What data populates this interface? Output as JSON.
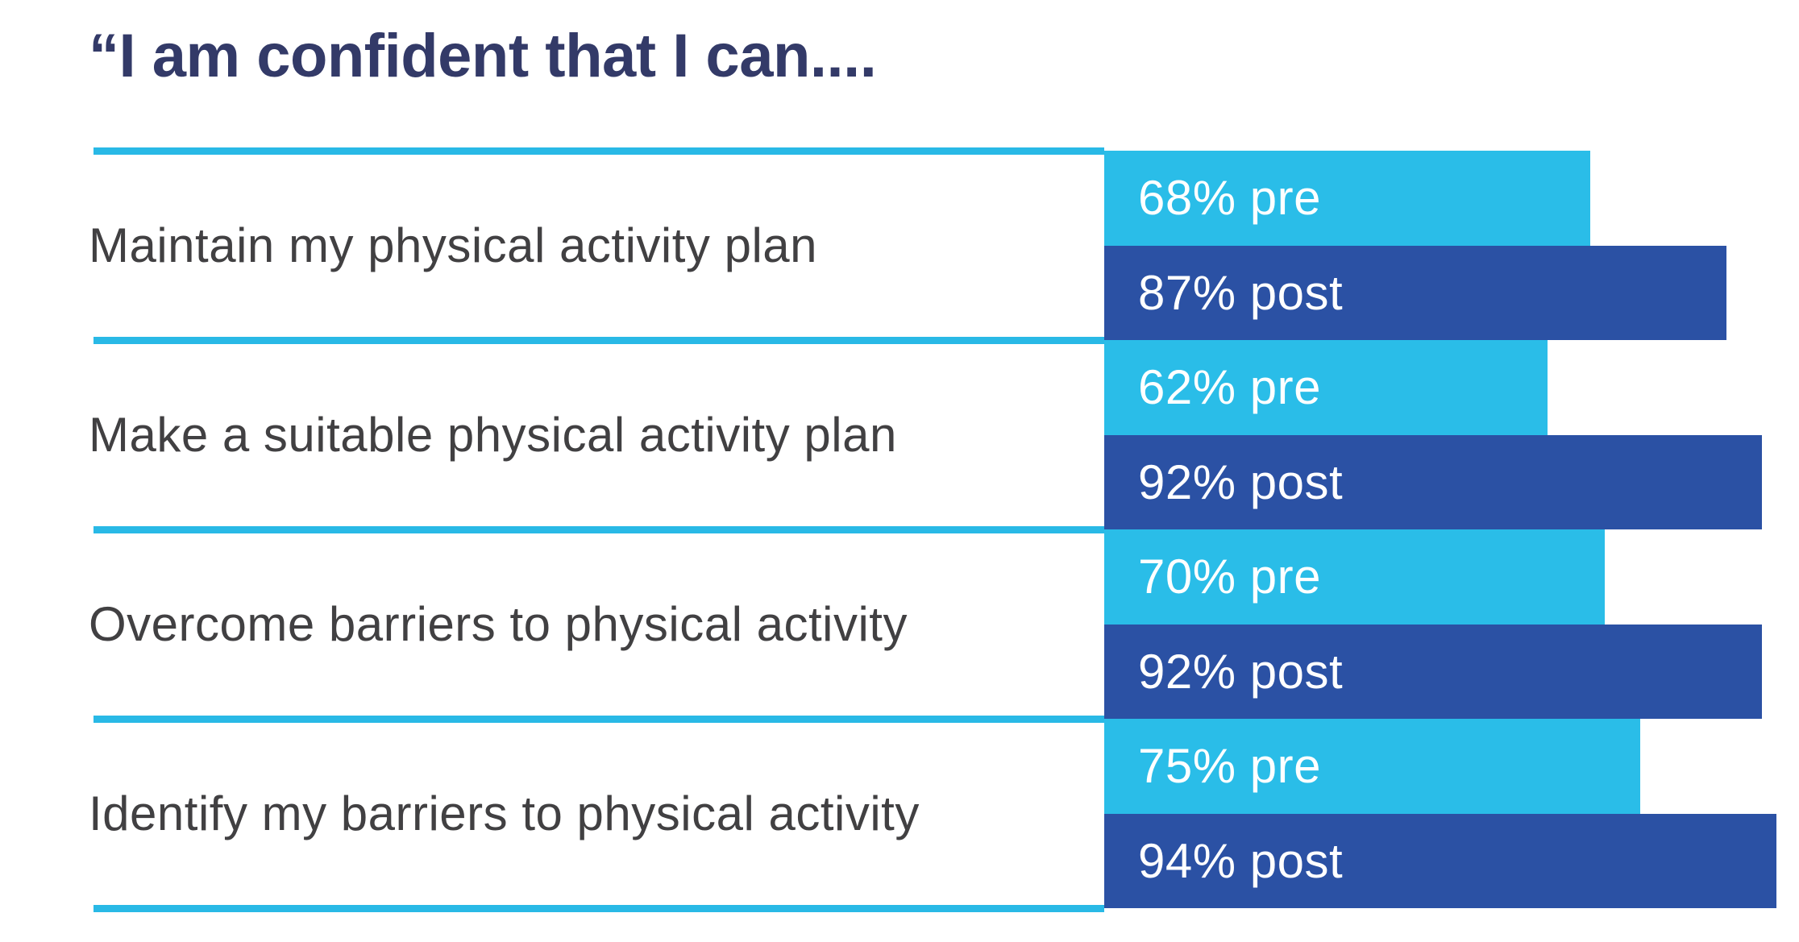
{
  "title": "“I am confident that I can....",
  "colors": {
    "pre_bar": "#2abde8",
    "post_bar": "#2b51a4",
    "divider_line": "#29b9e6",
    "title_text": "#333a68",
    "label_text": "#414042",
    "bar_text": "#ffffff",
    "background": "#ffffff"
  },
  "chart_data": {
    "type": "bar",
    "orientation": "horizontal",
    "title": "“I am confident that I can....",
    "categories": [
      "Maintain my physical activity plan",
      "Make a suitable physical activity plan",
      "Overcome barriers to physical activity",
      "Identify my barriers to physical activity"
    ],
    "series": [
      {
        "name": "pre",
        "values": [
          68,
          62,
          70,
          75
        ],
        "color": "#2abde8"
      },
      {
        "name": "post",
        "values": [
          87,
          92,
          92,
          94
        ],
        "color": "#2b51a4"
      }
    ],
    "value_unit": "%",
    "value_range": [
      0,
      100
    ],
    "axes_shown": false,
    "legend": "none (labels written inside bars)",
    "grid": "horizontal cyan divider lines between category rows, label area only"
  },
  "rows": [
    {
      "label": "Maintain my physical activity plan",
      "pre_label": "68% pre",
      "post_label": "87% post"
    },
    {
      "label": "Make a suitable physical activity plan",
      "pre_label": "62% pre",
      "post_label": "92% post"
    },
    {
      "label": "Overcome barriers to physical activity",
      "pre_label": "70% pre",
      "post_label": "92% post"
    },
    {
      "label": "Identify my barriers to physical activity",
      "pre_label": "75% pre",
      "post_label": "94% post"
    }
  ]
}
